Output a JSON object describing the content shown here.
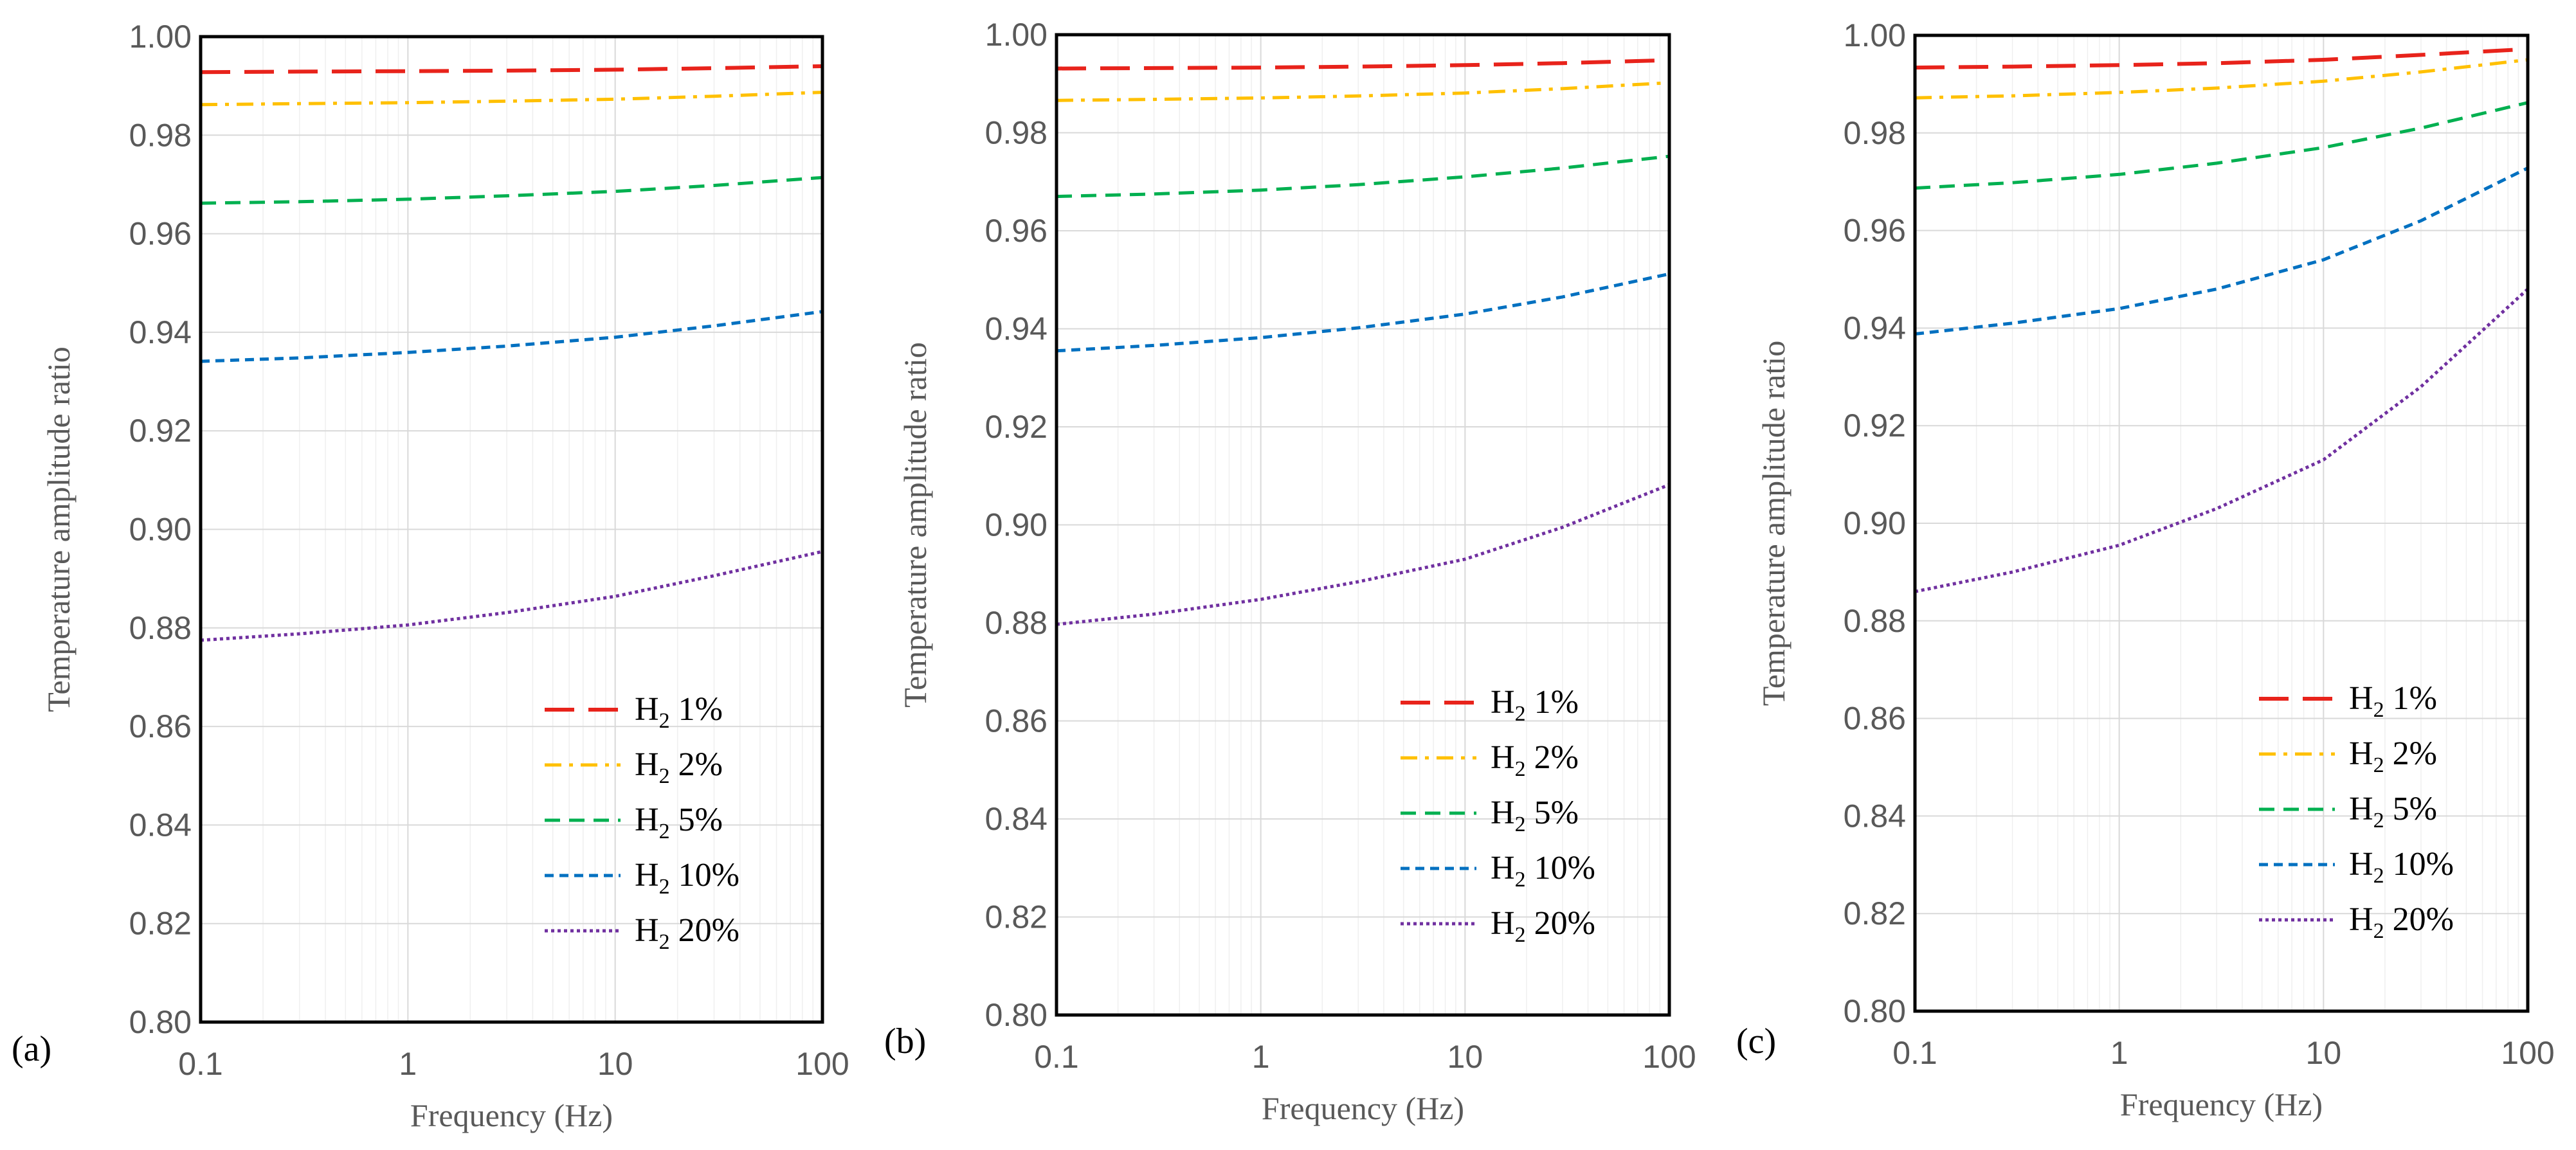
{
  "chart_data": [
    {
      "type": "line",
      "panel_label": "(a)",
      "xscale": "log",
      "xlim": [
        0.1,
        100
      ],
      "ylim": [
        0.8,
        1.0
      ],
      "xticks": [
        "0.1",
        "1",
        "10",
        "100"
      ],
      "yticks": [
        "0.80",
        "0.82",
        "0.84",
        "0.86",
        "0.88",
        "0.90",
        "0.92",
        "0.94",
        "0.96",
        "0.98",
        "1.00"
      ],
      "xlabel": "Frequency (Hz)",
      "ylabel": "Temperature amplitude ratio",
      "grid": true,
      "legend_position": "bottom-right",
      "x": [
        0.1,
        0.3,
        1,
        3,
        10,
        30,
        100
      ],
      "series": [
        {
          "name": "H2 1%",
          "base": "H",
          "sub": "2",
          "suffix": " 1%",
          "color": "#e8231b",
          "dash": "long-dash",
          "values": [
            0.9928,
            0.9929,
            0.993,
            0.9931,
            0.9933,
            0.9936,
            0.994
          ]
        },
        {
          "name": "H2 2%",
          "base": "H",
          "sub": "2",
          "suffix": " 2%",
          "color": "#ffc000",
          "dash": "dash-dot",
          "values": [
            0.9862,
            0.9864,
            0.9866,
            0.9869,
            0.9873,
            0.9879,
            0.9887
          ]
        },
        {
          "name": "H2 5%",
          "base": "H",
          "sub": "2",
          "suffix": " 5%",
          "color": "#00b050",
          "dash": "dash",
          "values": [
            0.9662,
            0.9665,
            0.967,
            0.9677,
            0.9686,
            0.9698,
            0.9714
          ]
        },
        {
          "name": "H2 10%",
          "base": "H",
          "sub": "2",
          "suffix": " 10%",
          "color": "#0070c0",
          "dash": "short-dash",
          "values": [
            0.9341,
            0.9348,
            0.9359,
            0.9372,
            0.939,
            0.9413,
            0.9442
          ]
        },
        {
          "name": "H2 20%",
          "base": "H",
          "sub": "2",
          "suffix": " 20%",
          "color": "#7030a0",
          "dash": "dot",
          "values": [
            0.8775,
            0.8788,
            0.8806,
            0.8831,
            0.8864,
            0.8906,
            0.8955
          ]
        }
      ]
    },
    {
      "type": "line",
      "panel_label": "(b)",
      "xscale": "log",
      "xlim": [
        0.1,
        100
      ],
      "ylim": [
        0.8,
        1.0
      ],
      "xticks": [
        "0.1",
        "1",
        "10",
        "100"
      ],
      "yticks": [
        "0.80",
        "0.82",
        "0.84",
        "0.86",
        "0.88",
        "0.90",
        "0.92",
        "0.94",
        "0.96",
        "0.98",
        "1.00"
      ],
      "xlabel": "Frequency (Hz)",
      "ylabel": "Temperature amplitude ratio",
      "grid": true,
      "legend_position": "bottom-right",
      "x": [
        0.1,
        0.3,
        1,
        3,
        10,
        30,
        100
      ],
      "series": [
        {
          "name": "H2 1%",
          "base": "H",
          "sub": "2",
          "suffix": " 1%",
          "color": "#e8231b",
          "dash": "long-dash",
          "values": [
            0.9931,
            0.9932,
            0.9933,
            0.9935,
            0.9938,
            0.9942,
            0.9948
          ]
        },
        {
          "name": "H2 2%",
          "base": "H",
          "sub": "2",
          "suffix": " 2%",
          "color": "#ffc000",
          "dash": "dash-dot",
          "values": [
            0.9866,
            0.9868,
            0.9871,
            0.9875,
            0.9881,
            0.989,
            0.9902
          ]
        },
        {
          "name": "H2 5%",
          "base": "H",
          "sub": "2",
          "suffix": " 5%",
          "color": "#00b050",
          "dash": "dash",
          "values": [
            0.967,
            0.9675,
            0.9683,
            0.9694,
            0.971,
            0.9728,
            0.9752
          ]
        },
        {
          "name": "H2 10%",
          "base": "H",
          "sub": "2",
          "suffix": " 10%",
          "color": "#0070c0",
          "dash": "short-dash",
          "values": [
            0.9355,
            0.9366,
            0.9382,
            0.9402,
            0.943,
            0.9465,
            0.9512
          ]
        },
        {
          "name": "H2 20%",
          "base": "H",
          "sub": "2",
          "suffix": " 20%",
          "color": "#7030a0",
          "dash": "dot",
          "values": [
            0.8797,
            0.8818,
            0.8848,
            0.8884,
            0.893,
            0.8995,
            0.9082
          ]
        }
      ]
    },
    {
      "type": "line",
      "panel_label": "(c)",
      "xscale": "log",
      "xlim": [
        0.1,
        100
      ],
      "ylim": [
        0.8,
        1.0
      ],
      "xticks": [
        "0.1",
        "1",
        "10",
        "100"
      ],
      "yticks": [
        "0.80",
        "0.82",
        "0.84",
        "0.86",
        "0.88",
        "0.90",
        "0.92",
        "0.94",
        "0.96",
        "0.98",
        "1.00"
      ],
      "xlabel": "Frequency (Hz)",
      "ylabel": "Temperature amplitude ratio",
      "grid": true,
      "legend_position": "bottom-right",
      "x": [
        0.1,
        0.3,
        1,
        3,
        10,
        30,
        100
      ],
      "series": [
        {
          "name": "H2 1%",
          "base": "H",
          "sub": "2",
          "suffix": " 1%",
          "color": "#e8231b",
          "dash": "long-dash",
          "values": [
            0.9934,
            0.9936,
            0.9939,
            0.9943,
            0.995,
            0.996,
            0.9972
          ]
        },
        {
          "name": "H2 2%",
          "base": "H",
          "sub": "2",
          "suffix": " 2%",
          "color": "#ffc000",
          "dash": "dash-dot",
          "values": [
            0.9872,
            0.9876,
            0.9883,
            0.9892,
            0.9906,
            0.9925,
            0.995
          ]
        },
        {
          "name": "H2 5%",
          "base": "H",
          "sub": "2",
          "suffix": " 5%",
          "color": "#00b050",
          "dash": "dash",
          "values": [
            0.9687,
            0.9698,
            0.9715,
            0.9738,
            0.977,
            0.981,
            0.9862
          ]
        },
        {
          "name": "H2 10%",
          "base": "H",
          "sub": "2",
          "suffix": " 10%",
          "color": "#0070c0",
          "dash": "short-dash",
          "values": [
            0.9388,
            0.941,
            0.944,
            0.948,
            0.954,
            0.962,
            0.9728
          ]
        },
        {
          "name": "H2 20%",
          "base": "H",
          "sub": "2",
          "suffix": " 20%",
          "color": "#7030a0",
          "dash": "dot",
          "values": [
            0.886,
            0.89,
            0.8955,
            0.903,
            0.913,
            0.928,
            0.948
          ]
        }
      ]
    }
  ]
}
